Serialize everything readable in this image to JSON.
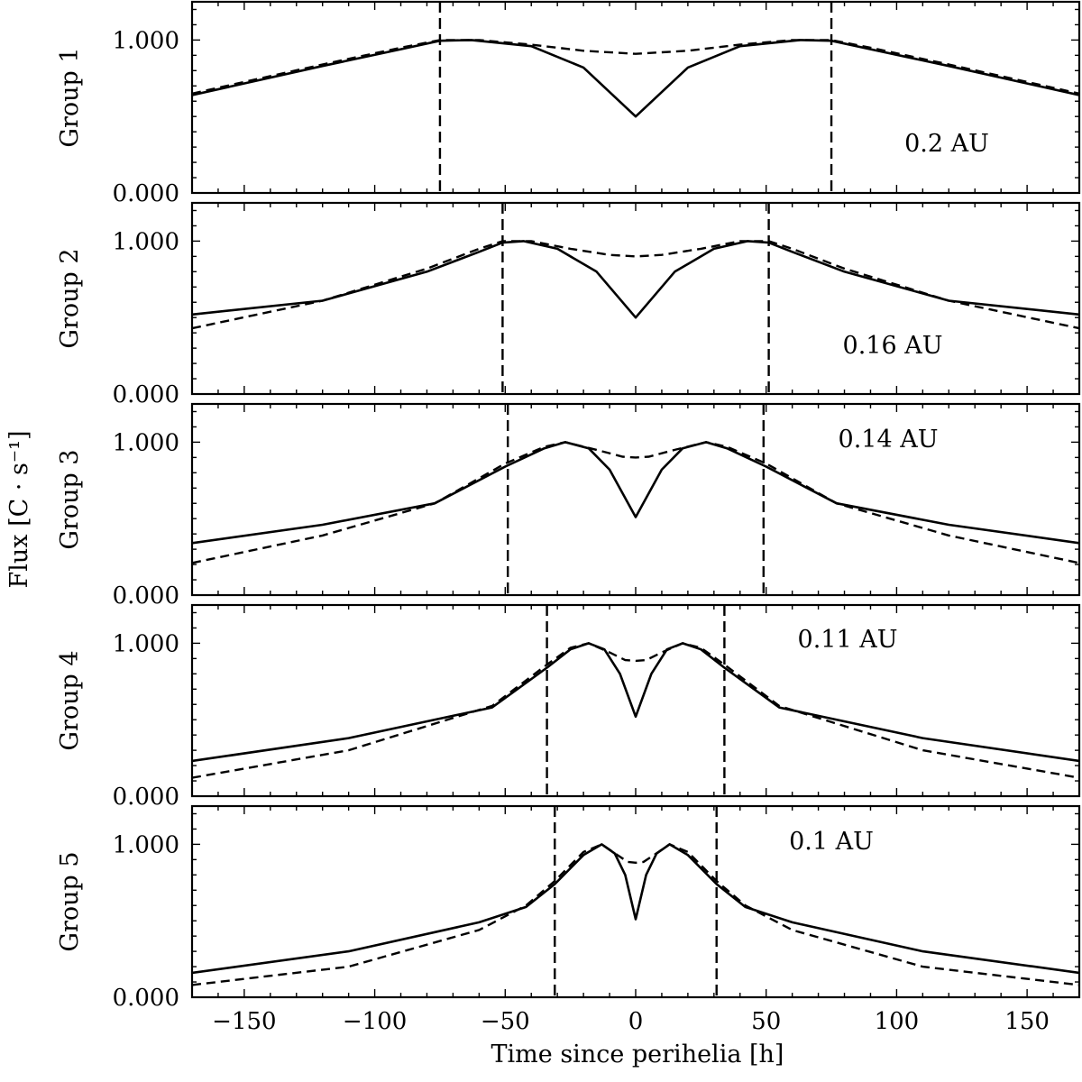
{
  "chart_data": {
    "type": "line",
    "xlabel": "Time since perihelia [h]",
    "ylabel": "Flux [C · s⁻¹]",
    "xlim": [
      -170,
      170
    ],
    "ylim": [
      0,
      1.25
    ],
    "x_ticks": [
      -150,
      -100,
      -50,
      0,
      50,
      100,
      150
    ],
    "x_tick_labels": [
      "−150",
      "−100",
      "−50",
      "0",
      "50",
      "100",
      "150"
    ],
    "y_ticks": [
      0,
      1
    ],
    "y_tick_labels": [
      "0.000",
      "1.000"
    ],
    "panels": [
      {
        "name": "Group 1",
        "distance_label": "0.2 AU",
        "vlines": [
          -75,
          75
        ],
        "solid": {
          "x": [
            -170,
            -120,
            -90,
            -75,
            -63,
            -40,
            -20,
            0,
            20,
            40,
            63,
            75,
            90,
            120,
            170
          ],
          "y": [
            0.64,
            0.83,
            0.94,
            0.995,
            1.0,
            0.96,
            0.82,
            0.5,
            0.82,
            0.96,
            1.0,
            0.995,
            0.94,
            0.83,
            0.64
          ]
        },
        "dashed": {
          "x": [
            -170,
            -120,
            -90,
            -75,
            -60,
            -40,
            -20,
            0,
            20,
            40,
            60,
            75,
            90,
            120,
            170
          ],
          "y": [
            0.65,
            0.84,
            0.95,
            1.0,
            1.0,
            0.97,
            0.93,
            0.91,
            0.93,
            0.97,
            1.0,
            1.0,
            0.95,
            0.84,
            0.65
          ]
        }
      },
      {
        "name": "Group 2",
        "distance_label": "0.16 AU",
        "vlines": [
          -51,
          51
        ],
        "solid": {
          "x": [
            -170,
            -120,
            -80,
            -60,
            -51,
            -43,
            -30,
            -15,
            0,
            15,
            30,
            43,
            51,
            60,
            80,
            120,
            170
          ],
          "y": [
            0.52,
            0.61,
            0.8,
            0.93,
            0.99,
            1.0,
            0.95,
            0.8,
            0.5,
            0.8,
            0.95,
            1.0,
            0.99,
            0.93,
            0.8,
            0.61,
            0.52
          ]
        },
        "dashed": {
          "x": [
            -170,
            -120,
            -80,
            -60,
            -51,
            -40,
            -25,
            -10,
            0,
            10,
            25,
            40,
            51,
            60,
            80,
            120,
            170
          ],
          "y": [
            0.43,
            0.61,
            0.82,
            0.95,
            1.0,
            1.0,
            0.95,
            0.91,
            0.9,
            0.91,
            0.95,
            1.0,
            1.0,
            0.95,
            0.82,
            0.61,
            0.43
          ]
        }
      },
      {
        "name": "Group 3",
        "distance_label": "0.14 AU",
        "vlines": [
          -49,
          49
        ],
        "solid": {
          "x": [
            -170,
            -120,
            -77,
            -50,
            -35,
            -27,
            -18,
            -10,
            0,
            10,
            18,
            27,
            35,
            50,
            77,
            120,
            170
          ],
          "y": [
            0.34,
            0.46,
            0.6,
            0.84,
            0.96,
            1.0,
            0.96,
            0.82,
            0.51,
            0.82,
            0.96,
            1.0,
            0.96,
            0.84,
            0.6,
            0.46,
            0.34
          ]
        },
        "dashed": {
          "x": [
            -170,
            -120,
            -77,
            -50,
            -35,
            -27,
            -15,
            -5,
            0,
            5,
            15,
            27,
            35,
            50,
            77,
            120,
            170
          ],
          "y": [
            0.21,
            0.39,
            0.6,
            0.86,
            0.97,
            1.0,
            0.95,
            0.905,
            0.9,
            0.905,
            0.95,
            1.0,
            0.97,
            0.86,
            0.6,
            0.39,
            0.21
          ]
        }
      },
      {
        "name": "Group 4",
        "distance_label": "0.11 AU",
        "vlines": [
          -34,
          34
        ],
        "solid": {
          "x": [
            -170,
            -110,
            -55,
            -34,
            -25,
            -18,
            -12,
            -6,
            0,
            6,
            12,
            18,
            25,
            34,
            55,
            110,
            170
          ],
          "y": [
            0.23,
            0.38,
            0.58,
            0.84,
            0.96,
            1.0,
            0.96,
            0.8,
            0.52,
            0.8,
            0.96,
            1.0,
            0.96,
            0.84,
            0.58,
            0.38,
            0.23
          ]
        },
        "dashed": {
          "x": [
            -170,
            -110,
            -55,
            -34,
            -25,
            -18,
            -10,
            -4,
            0,
            4,
            10,
            18,
            25,
            34,
            55,
            110,
            170
          ],
          "y": [
            0.12,
            0.3,
            0.59,
            0.86,
            0.97,
            1.0,
            0.94,
            0.89,
            0.885,
            0.89,
            0.94,
            1.0,
            0.97,
            0.86,
            0.59,
            0.3,
            0.12
          ]
        }
      },
      {
        "name": "Group 5",
        "distance_label": "0.1 AU",
        "vlines": [
          -31,
          31
        ],
        "solid": {
          "x": [
            -170,
            -110,
            -60,
            -42,
            -31,
            -20,
            -13,
            -8,
            -4,
            0,
            4,
            8,
            13,
            20,
            31,
            42,
            60,
            110,
            170
          ],
          "y": [
            0.16,
            0.3,
            0.49,
            0.59,
            0.74,
            0.93,
            1.0,
            0.94,
            0.8,
            0.51,
            0.8,
            0.94,
            1.0,
            0.93,
            0.74,
            0.59,
            0.49,
            0.3,
            0.16
          ]
        },
        "dashed": {
          "x": [
            -170,
            -110,
            -60,
            -42,
            -31,
            -20,
            -13,
            -7,
            -3,
            0,
            3,
            7,
            13,
            20,
            31,
            42,
            60,
            110,
            170
          ],
          "y": [
            0.08,
            0.2,
            0.44,
            0.6,
            0.76,
            0.95,
            1.0,
            0.93,
            0.885,
            0.88,
            0.885,
            0.93,
            1.0,
            0.95,
            0.76,
            0.6,
            0.44,
            0.2,
            0.08
          ]
        }
      }
    ]
  }
}
